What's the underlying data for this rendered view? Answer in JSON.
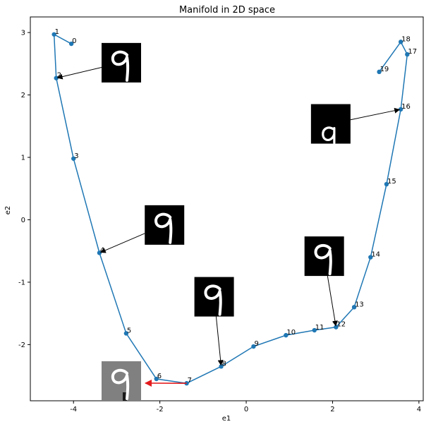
{
  "chart_data": {
    "type": "line",
    "title": "Manifold in 2D space",
    "xlabel": "e1",
    "ylabel": "e2",
    "xlim": [
      -5.0,
      4.1
    ],
    "ylim": [
      -2.9,
      3.25
    ],
    "xticks": [
      -4,
      -2,
      0,
      2,
      4
    ],
    "yticks": [
      -2,
      -1,
      0,
      1,
      2,
      3
    ],
    "grid": false,
    "legend": "none",
    "line_color": "#1f77b4",
    "series": [
      {
        "labels": [
          "0",
          "1",
          "2",
          "3",
          "4",
          "5",
          "6",
          "7",
          "8",
          "9",
          "10",
          "11",
          "12",
          "13",
          "14",
          "15",
          "16",
          "17",
          "18",
          "19"
        ],
        "x": [
          -4.05,
          -4.45,
          -4.4,
          -4.0,
          -3.4,
          -2.78,
          -2.08,
          -1.38,
          -0.58,
          0.17,
          0.92,
          1.58,
          2.08,
          2.5,
          2.88,
          3.25,
          3.58,
          3.73,
          3.58,
          3.08
        ],
        "y": [
          2.82,
          2.97,
          2.27,
          0.98,
          -0.53,
          -1.82,
          -2.55,
          -2.62,
          -2.35,
          -2.03,
          -1.85,
          -1.77,
          -1.72,
          -1.4,
          -0.6,
          0.57,
          1.77,
          2.65,
          2.85,
          2.37
        ]
      }
    ],
    "annotations": [
      {
        "point_index": 2,
        "image": "digit-9",
        "box_x": -3.35,
        "box_y": 2.2,
        "style": "normal"
      },
      {
        "point_index": 4,
        "image": "digit-9",
        "box_x": -2.35,
        "box_y": -0.4,
        "style": "normal"
      },
      {
        "point_index": 8,
        "image": "digit-9",
        "box_x": -1.2,
        "box_y": -1.55,
        "style": "normal"
      },
      {
        "point_index": 12,
        "image": "digit-9",
        "box_x": 1.35,
        "box_y": -0.9,
        "style": "normal"
      },
      {
        "point_index": 16,
        "image": "digit-a",
        "box_x": 1.5,
        "box_y": 1.22,
        "style": "normal"
      },
      {
        "point_index": 7,
        "image": "digit-9-noisy",
        "box_x": -3.35,
        "box_y": -2.9,
        "style": "red-arrow"
      }
    ],
    "arrow_color": "#000000",
    "highlight_arrow_color": "#e31a1c"
  }
}
